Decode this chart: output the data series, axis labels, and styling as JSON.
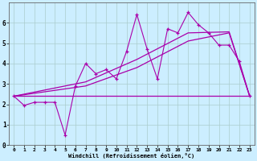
{
  "background_color": "#cceeff",
  "grid_color": "#aacccc",
  "line_color": "#aa00aa",
  "xlim": [
    -0.5,
    23.5
  ],
  "ylim": [
    0,
    7
  ],
  "xticks": [
    0,
    1,
    2,
    3,
    4,
    5,
    6,
    7,
    8,
    9,
    10,
    11,
    12,
    13,
    14,
    15,
    16,
    17,
    18,
    19,
    20,
    21,
    22,
    23
  ],
  "yticks": [
    0,
    1,
    2,
    3,
    4,
    5,
    6
  ],
  "xlabel": "Windchill (Refroidissement éolien,°C)",
  "series1_x": [
    0,
    1,
    2,
    3,
    4,
    5,
    6,
    7,
    8,
    9,
    10,
    11,
    12,
    13,
    14,
    15,
    16,
    17,
    18,
    19,
    20,
    21,
    22,
    23
  ],
  "series1_y": [
    2.4,
    1.95,
    2.1,
    2.1,
    2.1,
    0.5,
    2.9,
    4.0,
    3.5,
    3.7,
    3.25,
    4.6,
    6.4,
    4.7,
    3.25,
    5.7,
    5.5,
    6.5,
    5.9,
    5.5,
    4.9,
    4.9,
    4.1,
    2.4
  ],
  "series2_x": [
    0,
    23
  ],
  "series2_y": [
    2.4,
    2.4
  ],
  "series3_x": [
    0,
    7,
    12,
    17,
    21,
    23
  ],
  "series3_y": [
    2.4,
    2.9,
    3.8,
    5.1,
    5.5,
    2.4
  ],
  "series4_x": [
    0,
    7,
    12,
    17,
    21,
    23
  ],
  "series4_y": [
    2.4,
    3.1,
    4.2,
    5.5,
    5.55,
    2.4
  ]
}
